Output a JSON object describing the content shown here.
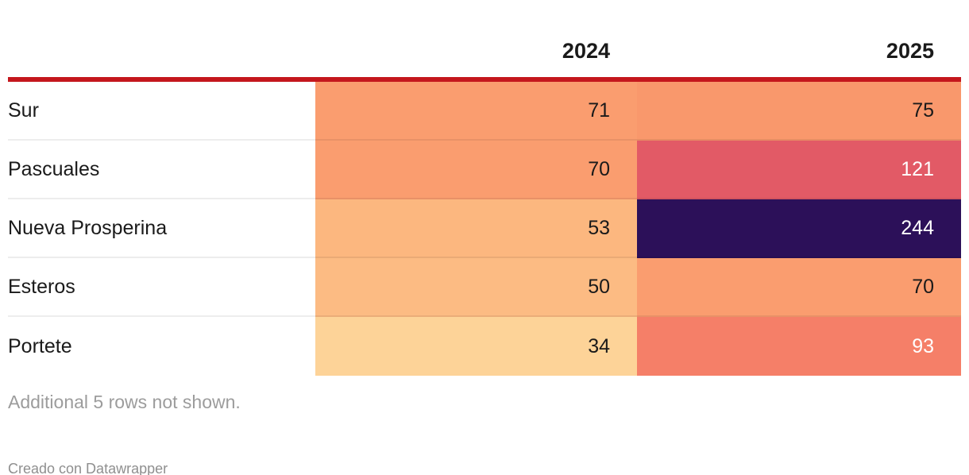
{
  "table": {
    "columns": [
      {
        "label": "2024"
      },
      {
        "label": "2025"
      }
    ],
    "rows": [
      {
        "label": "Sur",
        "cells": [
          {
            "value": "71",
            "bg": "#fa9d6f",
            "fg": "#1a1a1a"
          },
          {
            "value": "75",
            "bg": "#f9986c",
            "fg": "#1a1a1a"
          }
        ]
      },
      {
        "label": "Pascuales",
        "cells": [
          {
            "value": "70",
            "bg": "#fa9d6f",
            "fg": "#1a1a1a"
          },
          {
            "value": "121",
            "bg": "#e25a66",
            "fg": "#ffffff"
          }
        ]
      },
      {
        "label": "Nueva Prosperina",
        "cells": [
          {
            "value": "53",
            "bg": "#fcb77f",
            "fg": "#1a1a1a"
          },
          {
            "value": "244",
            "bg": "#2c1059",
            "fg": "#ffffff"
          }
        ]
      },
      {
        "label": "Esteros",
        "cells": [
          {
            "value": "50",
            "bg": "#fcbb83",
            "fg": "#1a1a1a"
          },
          {
            "value": "70",
            "bg": "#fa9d6f",
            "fg": "#1a1a1a"
          }
        ]
      },
      {
        "label": "Portete",
        "cells": [
          {
            "value": "34",
            "bg": "#fdd398",
            "fg": "#1a1a1a"
          },
          {
            "value": "93",
            "bg": "#f57f68",
            "fg": "#ffffff"
          }
        ]
      }
    ],
    "note": "Additional 5 rows not shown.",
    "credit": "Creado con Datawrapper"
  },
  "colors": {
    "header_rule": "#c4171d",
    "note_text": "#9c9c9c",
    "credit_text": "#8f8f8f"
  },
  "chart_data": {
    "type": "heatmap",
    "title": "",
    "categories": [
      "Sur",
      "Pascuales",
      "Nueva Prosperina",
      "Esteros",
      "Portete"
    ],
    "series": [
      {
        "name": "2024",
        "values": [
          71,
          70,
          53,
          50,
          34
        ]
      },
      {
        "name": "2025",
        "values": [
          75,
          121,
          244,
          70,
          93
        ]
      }
    ],
    "legend_position": "none",
    "color_scale": {
      "low": "#fdd398",
      "mid": "#f57f68",
      "high": "#2c1059"
    },
    "annotations": [
      "Additional 5 rows not shown.",
      "Creado con Datawrapper"
    ]
  }
}
